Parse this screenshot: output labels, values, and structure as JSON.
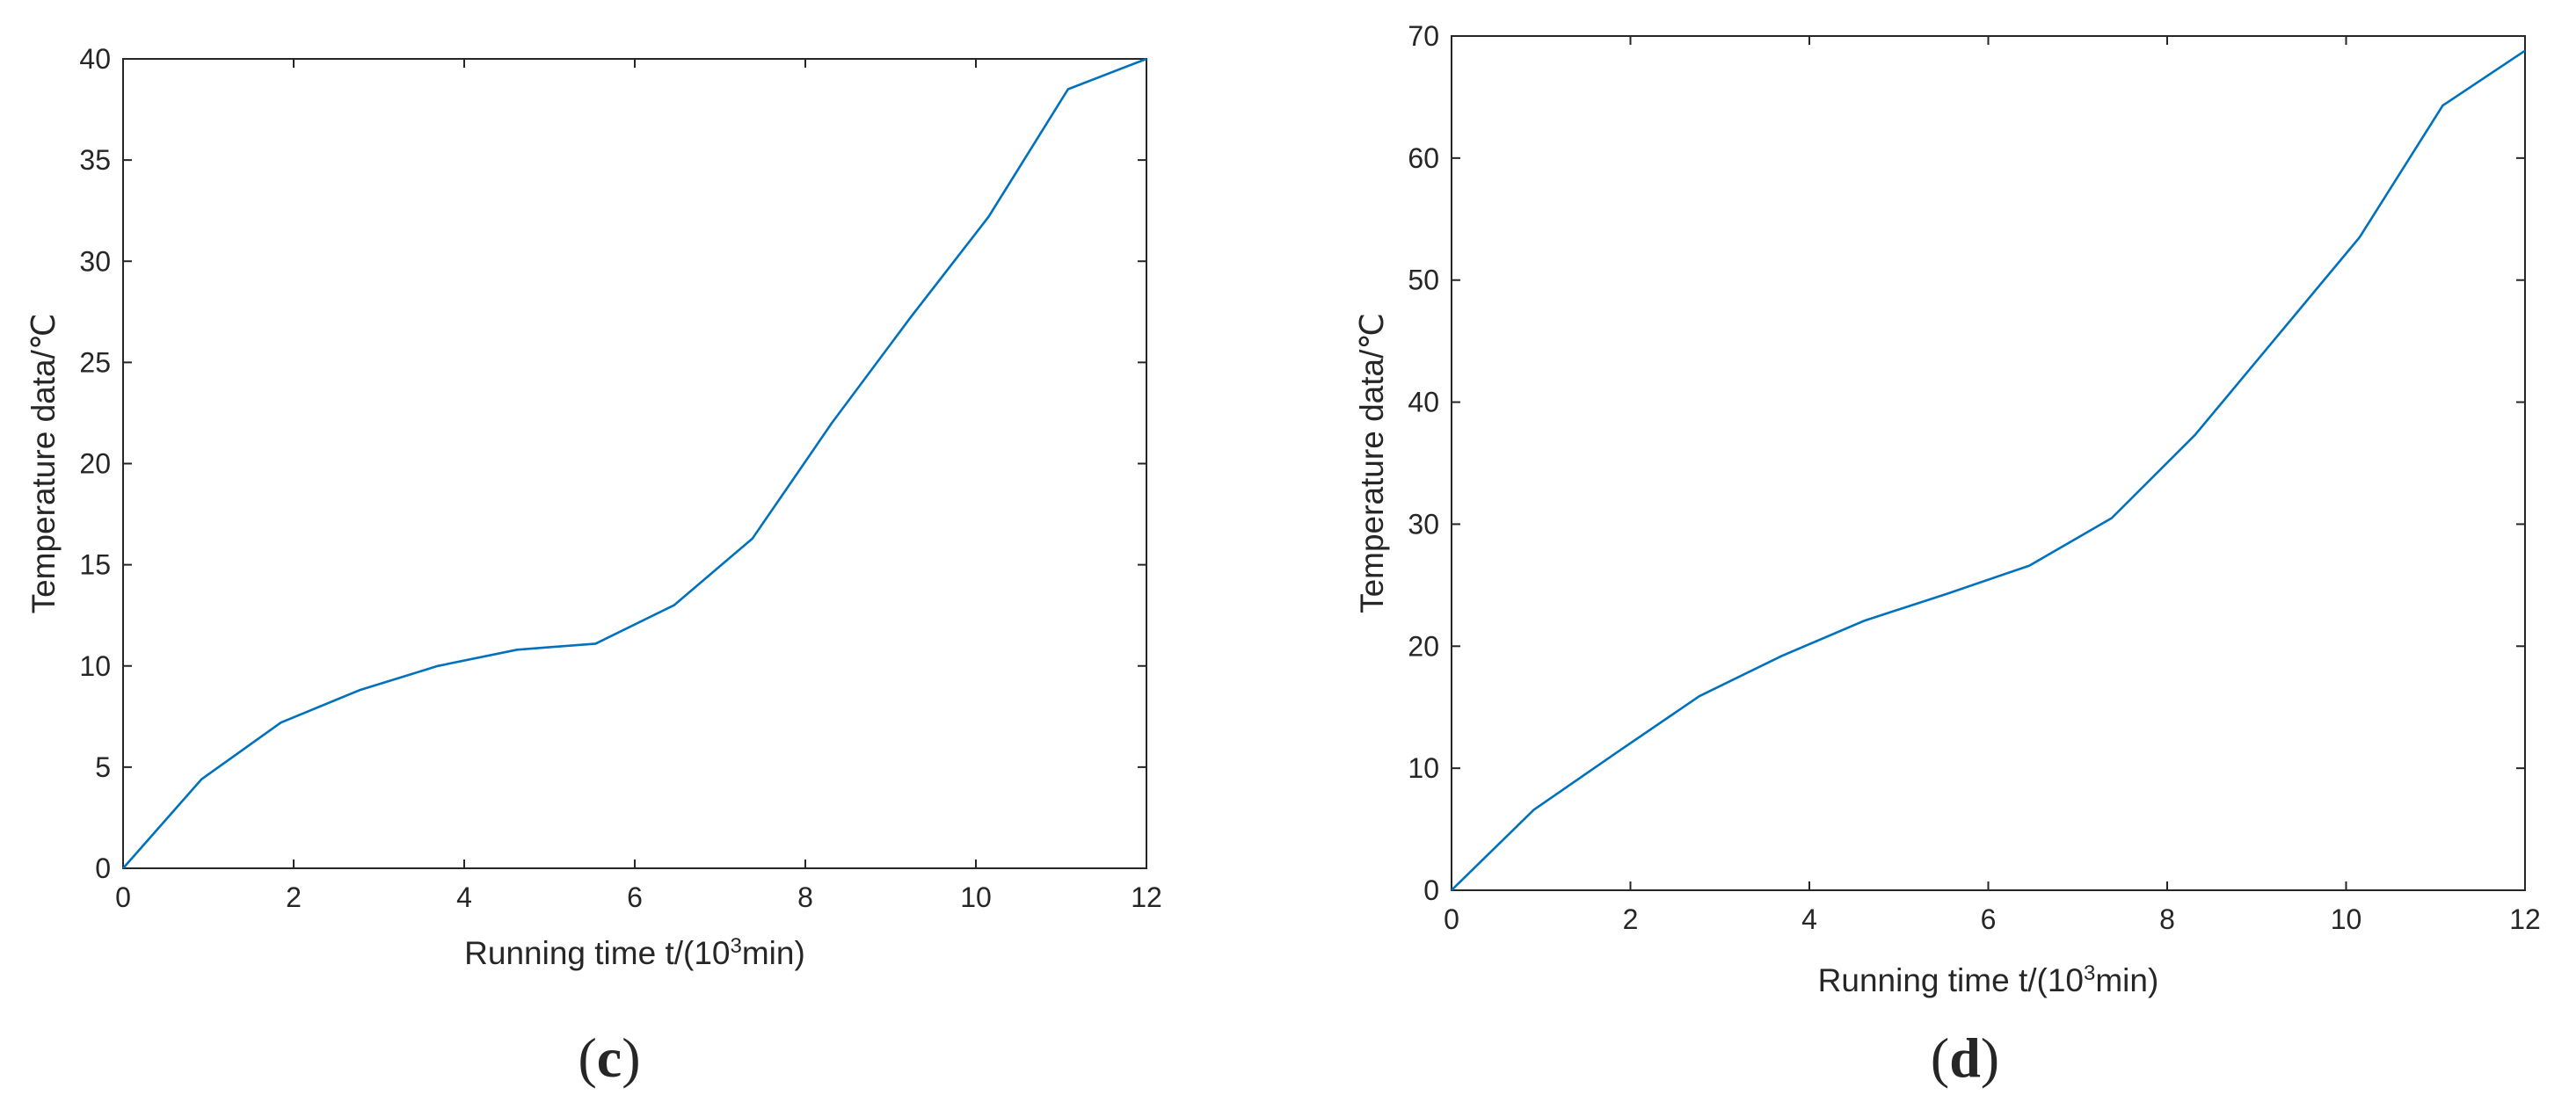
{
  "chart_data": [
    {
      "type": "line",
      "panel_label": "c",
      "xlabel": "Running time t/(10",
      "xlabel_sup": "3",
      "xlabel_end": "min)",
      "ylabel": "Temperature data/℃",
      "xlim": [
        0,
        12
      ],
      "ylim": [
        0,
        40
      ],
      "xticks": [
        0,
        2,
        4,
        6,
        8,
        10,
        12
      ],
      "yticks": [
        0,
        5,
        10,
        15,
        20,
        25,
        30,
        35,
        40
      ],
      "grid": false,
      "series": [
        {
          "color": "#0072bd",
          "x": [
            0,
            0.92,
            1.85,
            2.77,
            3.69,
            4.62,
            5.54,
            6.46,
            7.38,
            8.31,
            9.23,
            10.15,
            11.08,
            12.0
          ],
          "y": [
            0,
            4.4,
            7.2,
            8.8,
            10.0,
            10.8,
            11.1,
            13.0,
            16.3,
            22.0,
            27.2,
            32.2,
            38.5,
            40.0
          ]
        }
      ]
    },
    {
      "type": "line",
      "panel_label": "d",
      "xlabel": "Running time t/(10",
      "xlabel_sup": "3",
      "xlabel_end": "min)",
      "ylabel": "Temperature data/℃",
      "xlim": [
        0,
        12
      ],
      "ylim": [
        0,
        70
      ],
      "xticks": [
        0,
        2,
        4,
        6,
        8,
        10,
        12
      ],
      "yticks": [
        0,
        10,
        20,
        30,
        40,
        50,
        60,
        70
      ],
      "grid": false,
      "series": [
        {
          "color": "#0072bd",
          "x": [
            0,
            0.92,
            1.85,
            2.77,
            3.69,
            4.62,
            5.54,
            6.46,
            7.38,
            8.31,
            9.23,
            10.15,
            11.08,
            12.0
          ],
          "y": [
            0,
            6.6,
            11.3,
            15.9,
            19.2,
            22.1,
            24.3,
            26.6,
            30.5,
            37.3,
            45.4,
            53.5,
            64.3,
            68.8
          ]
        }
      ]
    }
  ]
}
